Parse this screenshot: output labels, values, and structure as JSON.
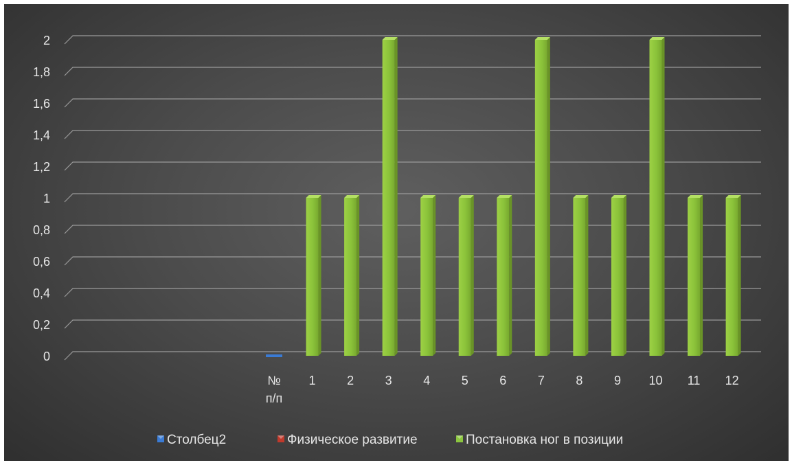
{
  "chart_data": {
    "type": "bar",
    "categories": [
      "№ п/п",
      "1",
      "2",
      "3",
      "4",
      "5",
      "6",
      "7",
      "8",
      "9",
      "10",
      "11",
      "12"
    ],
    "category_lines": [
      [
        "№",
        "п/п"
      ],
      [
        "1"
      ],
      [
        "2"
      ],
      [
        "3"
      ],
      [
        "4"
      ],
      [
        "5"
      ],
      [
        "6"
      ],
      [
        "7"
      ],
      [
        "8"
      ],
      [
        "9"
      ],
      [
        "10"
      ],
      [
        "11"
      ],
      [
        "12"
      ]
    ],
    "series": [
      {
        "name": "Столбец2",
        "color": "#3a7bd5",
        "values": [
          0,
          null,
          null,
          null,
          null,
          null,
          null,
          null,
          null,
          null,
          null,
          null,
          null
        ]
      },
      {
        "name": "Физическое развитие",
        "color": "#c0392b",
        "values": [
          null,
          null,
          null,
          null,
          null,
          null,
          null,
          null,
          null,
          null,
          null,
          null,
          null
        ]
      },
      {
        "name": "Постановка ног в позиции",
        "color": "#8cc63f",
        "values": [
          null,
          1,
          1,
          2,
          1,
          1,
          1,
          2,
          1,
          1,
          2,
          1,
          1
        ]
      }
    ],
    "yticks": [
      "0",
      "0,2",
      "0,4",
      "0,6",
      "0,8",
      "1",
      "1,2",
      "1,4",
      "1,6",
      "1,8",
      "2"
    ],
    "ylim": [
      0,
      2
    ],
    "grid": true,
    "legend_position": "bottom",
    "title": "",
    "xlabel": "",
    "ylabel": ""
  }
}
